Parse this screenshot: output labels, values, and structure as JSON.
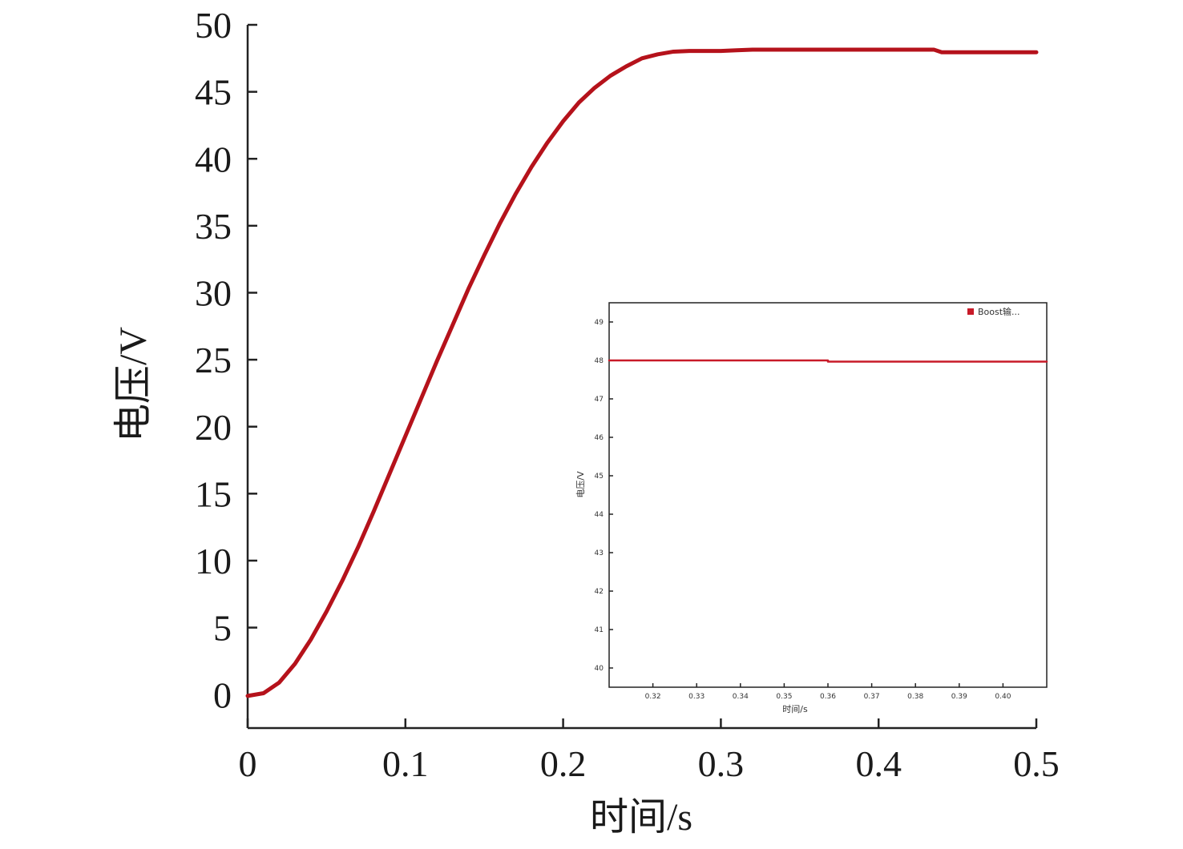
{
  "chart_data": [
    {
      "type": "line",
      "title": "",
      "xlabel": "时间/s",
      "ylabel": "电压/V",
      "xlim": [
        0,
        0.5
      ],
      "ylim": [
        -2.5,
        50
      ],
      "xticks": [
        0,
        0.1,
        0.2,
        0.3,
        0.4,
        0.5
      ],
      "xtick_labels": [
        "0",
        "0.1",
        "0.2",
        "0.3",
        "0.4",
        "0.5"
      ],
      "yticks": [
        0,
        5,
        10,
        15,
        20,
        25,
        30,
        35,
        40,
        45,
        50
      ],
      "ytick_labels": [
        "0",
        "5",
        "10",
        "15",
        "20",
        "25",
        "30",
        "35",
        "40",
        "45",
        "50"
      ],
      "grid": false,
      "series": [
        {
          "color": "#b5121b",
          "x": [
            0,
            0.01,
            0.02,
            0.03,
            0.04,
            0.05,
            0.06,
            0.07,
            0.08,
            0.09,
            0.1,
            0.11,
            0.12,
            0.13,
            0.14,
            0.15,
            0.16,
            0.17,
            0.18,
            0.19,
            0.2,
            0.21,
            0.22,
            0.23,
            0.24,
            0.25,
            0.26,
            0.27,
            0.28,
            0.29,
            0.3,
            0.31,
            0.32,
            0.34,
            0.36,
            0.38,
            0.4,
            0.42,
            0.435,
            0.44,
            0.46,
            0.48,
            0.5
          ],
          "y": [
            -0.1,
            0.1,
            0.9,
            2.3,
            4.1,
            6.2,
            8.5,
            11.0,
            13.7,
            16.5,
            19.3,
            22.1,
            24.9,
            27.6,
            30.3,
            32.8,
            35.2,
            37.4,
            39.4,
            41.2,
            42.8,
            44.2,
            45.3,
            46.2,
            46.9,
            47.5,
            47.8,
            48.0,
            48.05,
            48.05,
            48.05,
            48.1,
            48.15,
            48.15,
            48.15,
            48.15,
            48.15,
            48.15,
            48.15,
            47.95,
            47.95,
            47.95,
            47.95
          ]
        }
      ]
    },
    {
      "type": "line",
      "title": "",
      "xlabel": "时间/s",
      "ylabel": "电压/V",
      "ylim": [
        39.5,
        49.5
      ],
      "xticks": [
        0.32,
        0.33,
        0.34,
        0.35,
        0.36,
        0.37,
        0.38,
        0.39,
        0.4
      ],
      "xtick_labels": [
        "0.32",
        "0.33",
        "0.34",
        "0.35",
        "0.36",
        "0.37",
        "0.38",
        "0.39",
        "0.40"
      ],
      "yticks": [
        40,
        41,
        42,
        43,
        44,
        45,
        46,
        47,
        48,
        49
      ],
      "ytick_labels": [
        "40",
        "41",
        "42",
        "43",
        "44",
        "45",
        "46",
        "47",
        "48",
        "49"
      ],
      "xlim": [
        0.31,
        0.41
      ],
      "legend": {
        "position": "top-right",
        "entries": [
          "Boost输..."
        ]
      },
      "series": [
        {
          "name": "Boost输...",
          "color": "#c81a28",
          "x": [
            0.31,
            0.35,
            0.36,
            0.36,
            0.41
          ],
          "y": [
            48.0,
            48.0,
            48.0,
            47.97,
            47.97
          ]
        }
      ]
    }
  ]
}
